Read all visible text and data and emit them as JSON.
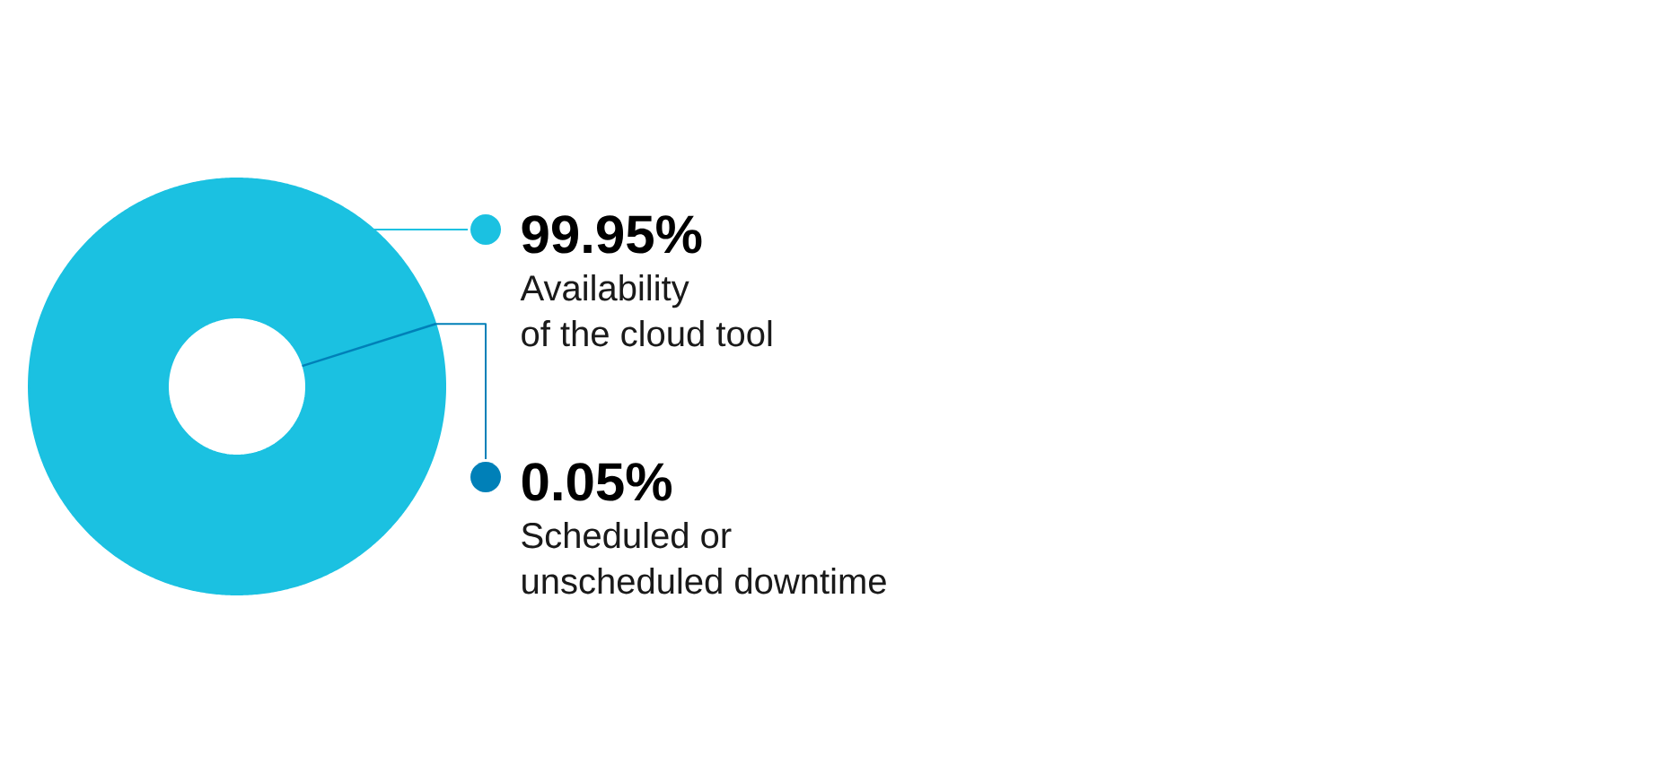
{
  "chart_data": {
    "type": "donut",
    "categories": [
      "Availability\nof the cloud tool",
      "Scheduled or\nunscheduled downtime"
    ],
    "values": [
      99.95,
      0.05
    ],
    "colors": [
      "#1bc1e1",
      "#0080b8"
    ],
    "value_labels": [
      "99.95%",
      "0.05%"
    ]
  }
}
